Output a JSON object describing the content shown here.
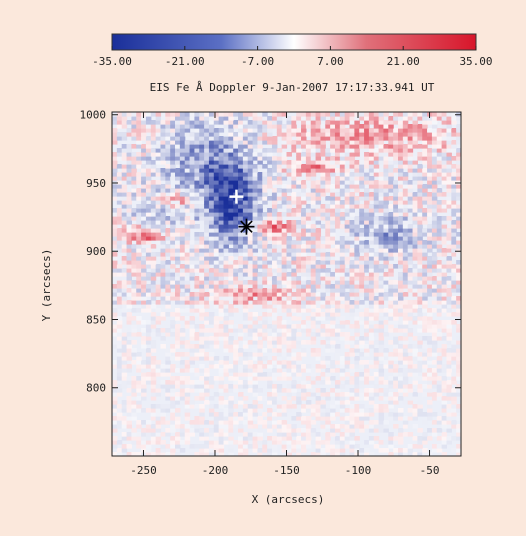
{
  "chart_data": {
    "type": "heatmap",
    "title": "EIS Fe Å Doppler 9-Jan-2007 17:17:33.941 UT",
    "xlabel": "X (arcsecs)",
    "ylabel": "Y (arcsecs)",
    "xlim": [
      -272,
      -28
    ],
    "ylim": [
      750,
      1002
    ],
    "xticks": [
      "-250",
      "-200",
      "-150",
      "-100",
      "-50"
    ],
    "yticks": [
      "1000",
      "950",
      "900",
      "850",
      "800"
    ],
    "xtick_values": [
      -250,
      -200,
      -150,
      -100,
      -50
    ],
    "ytick_values": [
      1000,
      950,
      900,
      850,
      800
    ],
    "colorbar": {
      "min": -35,
      "max": 35,
      "ticks": [
        "-35.00",
        "-21.00",
        "-7.00",
        "7.00",
        "21.00",
        "35.00"
      ],
      "tick_values": [
        -35,
        -21,
        -7,
        7,
        21,
        35
      ],
      "colors": [
        "#1a2f9a",
        "#ffffff",
        "#d8152a"
      ]
    },
    "markers": [
      {
        "symbol": "+",
        "x": -185,
        "y": 940,
        "color": "#ffffff"
      },
      {
        "symbol": "*",
        "x": -178,
        "y": 918,
        "color": "#000000"
      }
    ]
  }
}
